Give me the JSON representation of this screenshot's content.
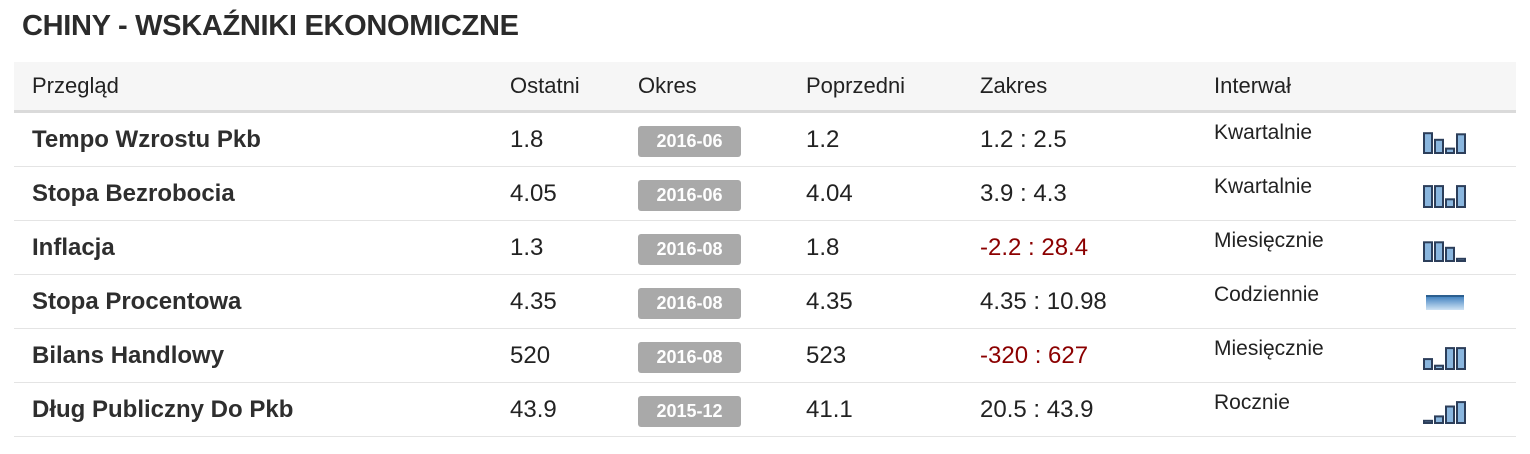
{
  "title": "CHINY - WSKAŹNIKI EKONOMICZNE",
  "headers": {
    "overview": "Przegląd",
    "last": "Ostatni",
    "period": "Okres",
    "previous": "Poprzedni",
    "range": "Zakres",
    "interval": "Interwał"
  },
  "rows": [
    {
      "name": "Tempo Wzrostu Pkb",
      "last": "1.8",
      "period": "2016-06",
      "previous": "1.2",
      "range": "1.2 : 2.5",
      "interval": "Kwartalnie",
      "spark_type": "bars",
      "spark_values": [
        0.9,
        0.6,
        0.2,
        0.85
      ]
    },
    {
      "name": "Stopa Bezrobocia",
      "last": "4.05",
      "period": "2016-06",
      "previous": "4.04",
      "range": "3.9 : 4.3",
      "interval": "Kwartalnie",
      "spark_type": "bars",
      "spark_values": [
        0.95,
        0.95,
        0.35,
        0.95
      ]
    },
    {
      "name": "Inflacja",
      "last": "1.3",
      "period": "2016-08",
      "previous": "1.8",
      "range": "-2.2 : 28.4",
      "interval": "Miesięcznie",
      "spark_type": "bars",
      "spark_values": [
        0.85,
        0.85,
        0.6,
        0.1
      ]
    },
    {
      "name": "Stopa Procentowa",
      "last": "4.35",
      "period": "2016-08",
      "previous": "4.35",
      "range": "4.35 : 10.98",
      "interval": "Codziennie",
      "spark_type": "area",
      "spark_values": [
        1,
        1,
        1,
        1
      ]
    },
    {
      "name": "Bilans Handlowy",
      "last": "520",
      "period": "2016-08",
      "previous": "523",
      "range": "-320 : 627",
      "interval": "Miesięcznie",
      "spark_type": "bars",
      "spark_values": [
        0.45,
        0.15,
        0.95,
        0.95
      ]
    },
    {
      "name": "Dług Publiczny Do Pkb",
      "last": "43.9",
      "period": "2015-12",
      "previous": "41.1",
      "range": "20.5 : 43.9",
      "interval": "Rocznie",
      "spark_type": "bars",
      "spark_values": [
        0.1,
        0.3,
        0.75,
        0.95
      ]
    }
  ],
  "colors": {
    "negative_range": "#8b0000",
    "period_badge": "#a9a9a9",
    "spark_dark": "#2c3e5a",
    "spark_light": "#8ab6de"
  }
}
